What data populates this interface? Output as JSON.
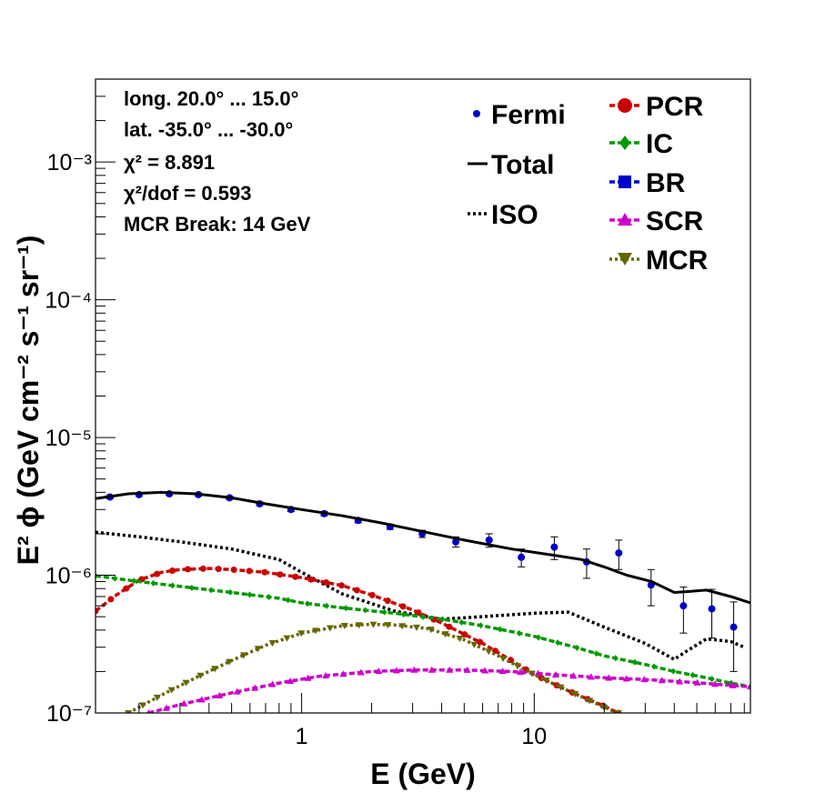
{
  "chart_data": {
    "type": "line",
    "xlabel": "E (GeV)",
    "ylabel": "E² ϕ (GeV cm⁻² s⁻¹ sr⁻¹)",
    "x_scale": "log",
    "y_scale": "log",
    "xlim": [
      0.13,
      85
    ],
    "ylim": [
      1e-07,
      0.004
    ],
    "x_tick_labels": [
      "1",
      "10"
    ],
    "y_tick_labels": [
      "10⁻⁷",
      "10⁻⁶",
      "10⁻⁵",
      "10⁻⁴",
      "10⁻³"
    ],
    "annotations": [
      "long. 20.0° ... 15.0°",
      "lat. -35.0° ... -30.0°",
      "χ² = 8.891",
      "χ²/dof = 0.593",
      "MCR Break: 14 GeV"
    ],
    "legend": [
      "Fermi",
      "Total",
      "ISO",
      "PCR",
      "IC",
      "BR",
      "SCR",
      "MCR"
    ],
    "series": [
      {
        "name": "Fermi",
        "style": "points",
        "color": "#0000cc",
        "x": [
          0.15,
          0.2,
          0.27,
          0.36,
          0.49,
          0.66,
          0.9,
          1.25,
          1.75,
          2.4,
          3.3,
          4.6,
          6.4,
          8.8,
          12.2,
          16.8,
          23.1,
          31.8,
          43.8,
          58,
          72
        ],
        "y": [
          3.7e-06,
          3.85e-06,
          3.9e-06,
          3.85e-06,
          3.65e-06,
          3.3e-06,
          3e-06,
          2.8e-06,
          2.5e-06,
          2.25e-06,
          2e-06,
          1.75e-06,
          1.8e-06,
          1.35e-06,
          1.6e-06,
          1.25e-06,
          1.45e-06,
          8.5e-07,
          6e-07,
          5.7e-07,
          4.2e-07
        ],
        "y_err": [
          1e-07,
          1e-07,
          1e-07,
          1e-07,
          1e-07,
          1e-07,
          1e-07,
          1e-07,
          1e-07,
          1e-07,
          1.2e-07,
          1.5e-07,
          2e-07,
          2e-07,
          3e-07,
          3e-07,
          3.5e-07,
          2.5e-07,
          2.2e-07,
          2.2e-07,
          2.2e-07
        ]
      },
      {
        "name": "Total",
        "style": "solid",
        "color": "#000000",
        "x": [
          0.13,
          0.18,
          0.25,
          0.35,
          0.5,
          0.7,
          1.0,
          1.5,
          2.2,
          3.2,
          5.0,
          8.0,
          12.0,
          16.0,
          20.0,
          25.0,
          32.0,
          40.0,
          45.0,
          55.0,
          70.0,
          85.0
        ],
        "y": [
          3.6e-06,
          3.9e-06,
          4e-06,
          3.9e-06,
          3.65e-06,
          3.3e-06,
          3e-06,
          2.7e-06,
          2.4e-06,
          2.1e-06,
          1.8e-06,
          1.55e-06,
          1.4e-06,
          1.3e-06,
          1.15e-06,
          1e-06,
          9e-07,
          7.5e-07,
          7.6e-07,
          7.8e-07,
          7e-07,
          6.3e-07
        ]
      },
      {
        "name": "ISO",
        "style": "dotted",
        "color": "#000000",
        "x": [
          0.13,
          0.2,
          0.3,
          0.5,
          0.8,
          1.0,
          1.5,
          2.5,
          4.0,
          6.0,
          10.0,
          14.0,
          20.0,
          30.0,
          40.0,
          45.0,
          55.0,
          70.0,
          80.0
        ],
        "y": [
          2.05e-06,
          1.9e-06,
          1.75e-06,
          1.55e-06,
          1.3e-06,
          1.05e-06,
          7.3e-07,
          5.5e-07,
          4.8e-07,
          5e-07,
          5.3e-07,
          5.4e-07,
          4.2e-07,
          3.2e-07,
          2.45e-07,
          2.8e-07,
          3.45e-07,
          3.3e-07,
          3e-07
        ]
      },
      {
        "name": "PCR",
        "style": "dashed-circle",
        "color": "#cc0000",
        "x": [
          0.13,
          0.16,
          0.2,
          0.25,
          0.3,
          0.4,
          0.5,
          0.7,
          1.0,
          1.5,
          2.0,
          3.0,
          4.0,
          6.0,
          8.0,
          10.0,
          14.0,
          20.0,
          23.0
        ],
        "y": [
          5.5e-07,
          7.2e-07,
          9.2e-07,
          1.05e-06,
          1.1e-06,
          1.12e-06,
          1.1e-06,
          1.05e-06,
          9.6e-07,
          8.4e-07,
          7.2e-07,
          5.6e-07,
          4.5e-07,
          3.2e-07,
          2.4e-07,
          1.9e-07,
          1.45e-07,
          1.12e-07,
          1e-07
        ]
      },
      {
        "name": "IC",
        "style": "dashed-diamond",
        "color": "#009900",
        "x": [
          0.13,
          0.2,
          0.3,
          0.5,
          0.8,
          1.0,
          1.5,
          2.5,
          4.0,
          6.0,
          10.0,
          15.0,
          20.0,
          30.0,
          40.0,
          55.0,
          70.0,
          85.0
        ],
        "y": [
          9.9e-07,
          9e-07,
          8.3e-07,
          7.5e-07,
          6.8e-07,
          6.3e-07,
          5.8e-07,
          5.3e-07,
          4.8e-07,
          4.3e-07,
          3.6e-07,
          3e-07,
          2.6e-07,
          2.25e-07,
          2e-07,
          1.8e-07,
          1.65e-07,
          1.55e-07
        ]
      },
      {
        "name": "BR",
        "style": "dashed-square",
        "color": "#0000cc",
        "x": [],
        "y": []
      },
      {
        "name": "SCR",
        "style": "dashed-triangle",
        "color": "#cc00cc",
        "x": [
          0.22,
          0.3,
          0.5,
          0.8,
          1.2,
          2.0,
          3.0,
          5.0,
          8.0,
          12.0,
          20.0,
          30.0,
          45.0,
          60.0,
          85.0
        ],
        "y": [
          1e-07,
          1.15e-07,
          1.4e-07,
          1.65e-07,
          1.85e-07,
          2e-07,
          2.05e-07,
          2.05e-07,
          2e-07,
          1.9e-07,
          1.8e-07,
          1.75e-07,
          1.68e-07,
          1.62e-07,
          1.55e-07
        ]
      },
      {
        "name": "MCR",
        "style": "dotted-invtriangle",
        "color": "#666600",
        "x": [
          0.18,
          0.25,
          0.35,
          0.5,
          0.7,
          1.0,
          1.5,
          2.0,
          2.5,
          3.5,
          5.0,
          7.0,
          10.0,
          14.0,
          20.0,
          23.0
        ],
        "y": [
          1e-07,
          1.35e-07,
          1.8e-07,
          2.4e-07,
          3.1e-07,
          3.8e-07,
          4.3e-07,
          4.4e-07,
          4.35e-07,
          4.1e-07,
          3.4e-07,
          2.6e-07,
          1.9e-07,
          1.45e-07,
          1.1e-07,
          1e-07
        ]
      }
    ]
  }
}
